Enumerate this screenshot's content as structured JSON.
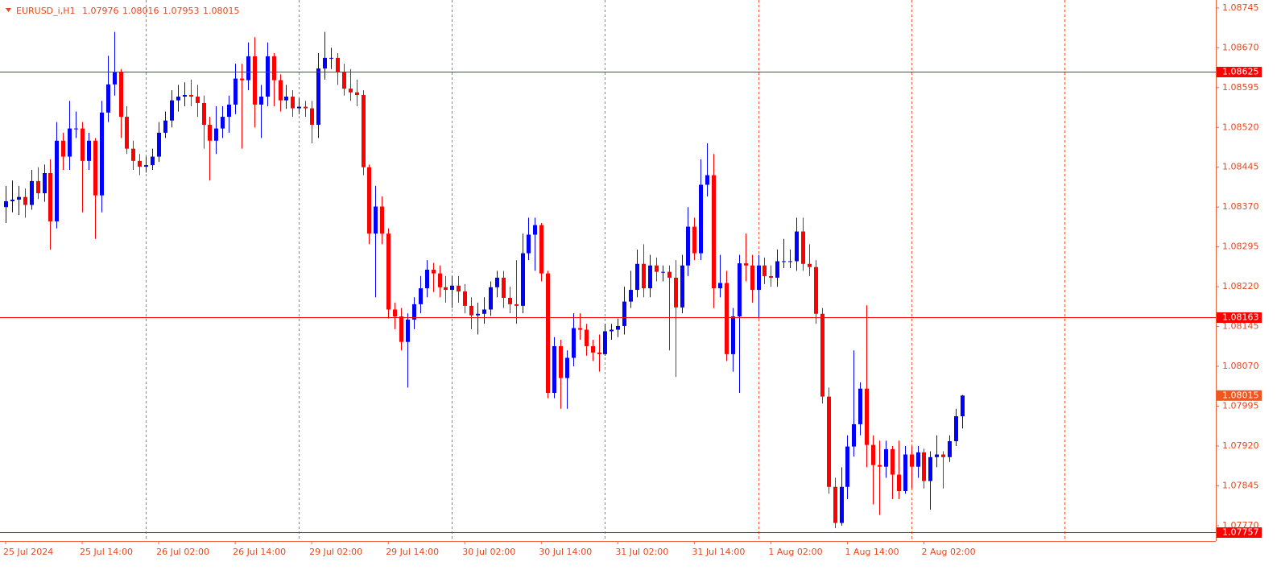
{
  "chart_data": {
    "type": "candlestick",
    "symbol": "EURUSD_i,H1",
    "up_color": "#0000ff",
    "down_color": "#ff0000",
    "level_color": "#ff0000",
    "ylim": [
      1.07741,
      1.0876
    ],
    "yticks": [
      1.08745,
      {
        "value": 1.0867,
        "label": "1.08670"
      },
      1.08595,
      {
        "value": 1.0852,
        "label": "1.08520"
      },
      1.08445,
      {
        "value": 1.0837,
        "label": "1.08370"
      },
      1.08295,
      {
        "value": 1.0822,
        "label": "1.08220"
      },
      1.08145,
      {
        "value": 1.0807,
        "label": "1.08070"
      },
      1.07995,
      {
        "value": 1.0792,
        "label": "1.07920"
      },
      1.07845,
      {
        "value": 1.0777,
        "label": "1.07770"
      }
    ],
    "levels": [
      1.08625,
      1.08163,
      1.07757
    ],
    "x": [
      "25 Jul 2024",
      null,
      null,
      null,
      null,
      null,
      null,
      null,
      null,
      null,
      null,
      null,
      "25 Jul 14:00",
      null,
      null,
      null,
      null,
      null,
      null,
      null,
      null,
      null,
      null,
      null,
      "26 Jul 02:00",
      null,
      null,
      null,
      null,
      null,
      null,
      null,
      null,
      null,
      null,
      null,
      "26 Jul 14:00",
      null,
      null,
      null,
      null,
      null,
      null,
      null,
      null,
      null,
      null,
      null,
      "29 Jul 02:00",
      null,
      null,
      null,
      null,
      null,
      null,
      null,
      null,
      null,
      null,
      null,
      "29 Jul 14:00",
      null,
      null,
      null,
      null,
      null,
      null,
      null,
      null,
      null,
      null,
      null,
      "30 Jul 02:00",
      null,
      null,
      null,
      null,
      null,
      null,
      null,
      null,
      null,
      null,
      null,
      "30 Jul 14:00",
      null,
      null,
      null,
      null,
      null,
      null,
      null,
      null,
      null,
      null,
      null,
      "31 Jul 02:00",
      null,
      null,
      null,
      null,
      null,
      null,
      null,
      null,
      null,
      null,
      null,
      "31 Jul 14:00",
      null,
      null,
      null,
      null,
      null,
      null,
      null,
      null,
      null,
      null,
      null,
      "1 Aug 02:00",
      null,
      null,
      null,
      null,
      null,
      null,
      null,
      null,
      null,
      null,
      null,
      "1 Aug 14:00",
      null,
      null,
      null,
      null,
      null,
      null,
      null,
      null,
      null,
      null,
      null,
      "2 Aug 02:00",
      null,
      null,
      null,
      null,
      null,
      null
    ],
    "candles": [
      [
        1.0837,
        1.0841,
        1.0834,
        1.08381
      ],
      [
        1.08381,
        1.0842,
        1.0836,
        1.08384
      ],
      [
        1.08384,
        1.0841,
        1.08355,
        1.08389
      ],
      [
        1.08389,
        1.08405,
        1.0835,
        1.08374
      ],
      [
        1.08374,
        1.0844,
        1.08365,
        1.08419
      ],
      [
        1.08419,
        1.08445,
        1.08385,
        1.08396
      ],
      [
        1.08396,
        1.0845,
        1.0838,
        1.08434
      ],
      [
        1.08434,
        1.0846,
        1.0829,
        1.08343
      ],
      [
        1.08343,
        1.0853,
        1.0833,
        1.08495
      ],
      [
        1.08495,
        1.0851,
        1.0844,
        1.08465
      ],
      [
        1.08465,
        1.0857,
        1.0844,
        1.08518
      ],
      [
        1.08518,
        1.0855,
        1.085,
        1.08518
      ],
      [
        1.08518,
        1.0853,
        1.0836,
        1.08457
      ],
      [
        1.08457,
        1.0851,
        1.0844,
        1.08495
      ],
      [
        1.08495,
        1.085,
        1.0831,
        1.08392
      ],
      [
        1.08392,
        1.0857,
        1.0836,
        1.08548
      ],
      [
        1.08548,
        1.08655,
        1.0853,
        1.08601
      ],
      [
        1.08601,
        1.087,
        1.0858,
        1.08624
      ],
      [
        1.08624,
        1.0863,
        1.085,
        1.0854
      ],
      [
        1.0854,
        1.0856,
        1.0847,
        1.0848
      ],
      [
        1.0848,
        1.08495,
        1.0844,
        1.08457
      ],
      [
        1.08457,
        1.0847,
        1.0843,
        1.08446
      ],
      [
        1.08446,
        1.08465,
        1.08435,
        1.08449
      ],
      [
        1.08449,
        1.0848,
        1.0844,
        1.08465
      ],
      [
        1.08465,
        1.0853,
        1.08455,
        1.0851
      ],
      [
        1.0851,
        1.0855,
        1.085,
        1.08533
      ],
      [
        1.08533,
        1.0859,
        1.0852,
        1.08571
      ],
      [
        1.08571,
        1.086,
        1.0855,
        1.08578
      ],
      [
        1.08578,
        1.08605,
        1.0856,
        1.08581
      ],
      [
        1.08581,
        1.0861,
        1.0856,
        1.08578
      ],
      [
        1.08578,
        1.086,
        1.0854,
        1.08566
      ],
      [
        1.08566,
        1.0858,
        1.0848,
        1.08525
      ],
      [
        1.08525,
        1.0854,
        1.0842,
        1.08495
      ],
      [
        1.08495,
        1.0856,
        1.0847,
        1.08518
      ],
      [
        1.08518,
        1.0856,
        1.085,
        1.0854
      ],
      [
        1.0854,
        1.0858,
        1.0851,
        1.08563
      ],
      [
        1.08563,
        1.0864,
        1.08545,
        1.08612
      ],
      [
        1.08612,
        1.0864,
        1.0848,
        1.08609
      ],
      [
        1.08609,
        1.0868,
        1.0859,
        1.08654
      ],
      [
        1.08654,
        1.0869,
        1.0852,
        1.08563
      ],
      [
        1.08563,
        1.086,
        1.085,
        1.08578
      ],
      [
        1.08578,
        1.0868,
        1.0856,
        1.08654
      ],
      [
        1.08654,
        1.0866,
        1.0856,
        1.08609
      ],
      [
        1.08609,
        1.0862,
        1.0855,
        1.08571
      ],
      [
        1.08571,
        1.086,
        1.08555,
        1.08578
      ],
      [
        1.08578,
        1.0859,
        1.0854,
        1.08556
      ],
      [
        1.08556,
        1.08575,
        1.08545,
        1.08559
      ],
      [
        1.08559,
        1.0857,
        1.0854,
        1.08556
      ],
      [
        1.08556,
        1.0857,
        1.0849,
        1.08525
      ],
      [
        1.08525,
        1.0866,
        1.085,
        1.08631
      ],
      [
        1.08631,
        1.087,
        1.0861,
        1.08651
      ],
      [
        1.08651,
        1.0867,
        1.0863,
        1.08651
      ],
      [
        1.08651,
        1.0866,
        1.086,
        1.08624
      ],
      [
        1.08624,
        1.0864,
        1.0858,
        1.08593
      ],
      [
        1.08593,
        1.0863,
        1.0857,
        1.08586
      ],
      [
        1.08586,
        1.0861,
        1.0856,
        1.08581
      ],
      [
        1.08581,
        1.0859,
        1.0843,
        1.08445
      ],
      [
        1.08445,
        1.0845,
        1.083,
        1.0832
      ],
      [
        1.0832,
        1.0841,
        1.082,
        1.08371
      ],
      [
        1.08371,
        1.0839,
        1.083,
        1.0832
      ],
      [
        1.0832,
        1.0833,
        1.0816,
        1.08177
      ],
      [
        1.08177,
        1.0819,
        1.0814,
        1.08164
      ],
      [
        1.08164,
        1.0818,
        1.081,
        1.08116
      ],
      [
        1.08116,
        1.0817,
        1.0803,
        1.08158
      ],
      [
        1.08158,
        1.082,
        1.0814,
        1.08187
      ],
      [
        1.08187,
        1.0824,
        1.0817,
        1.08217
      ],
      [
        1.08217,
        1.0827,
        1.082,
        1.08252
      ],
      [
        1.08252,
        1.08265,
        1.0821,
        1.08245
      ],
      [
        1.08245,
        1.0826,
        1.082,
        1.08219
      ],
      [
        1.08219,
        1.0824,
        1.0819,
        1.08214
      ],
      [
        1.08214,
        1.0824,
        1.0818,
        1.08222
      ],
      [
        1.08222,
        1.0824,
        1.0819,
        1.08211
      ],
      [
        1.08211,
        1.08225,
        1.0817,
        1.08184
      ],
      [
        1.08184,
        1.082,
        1.0814,
        1.08166
      ],
      [
        1.08166,
        1.0819,
        1.0813,
        1.08169
      ],
      [
        1.08169,
        1.082,
        1.0815,
        1.08177
      ],
      [
        1.08177,
        1.0823,
        1.08165,
        1.08219
      ],
      [
        1.08219,
        1.0825,
        1.082,
        1.08237
      ],
      [
        1.08237,
        1.0825,
        1.0818,
        1.08199
      ],
      [
        1.08199,
        1.0822,
        1.0817,
        1.08187
      ],
      [
        1.08187,
        1.0827,
        1.0815,
        1.08184
      ],
      [
        1.08184,
        1.0832,
        1.0817,
        1.08283
      ],
      [
        1.08283,
        1.0835,
        1.0827,
        1.08318
      ],
      [
        1.08318,
        1.0835,
        1.0825,
        1.08336
      ],
      [
        1.08336,
        1.0834,
        1.0823,
        1.08245
      ],
      [
        1.08245,
        1.0825,
        1.0801,
        1.0802
      ],
      [
        1.0802,
        1.08125,
        1.0801,
        1.08108
      ],
      [
        1.08108,
        1.0812,
        1.0799,
        1.08048
      ],
      [
        1.08048,
        1.081,
        1.0799,
        1.08086
      ],
      [
        1.08086,
        1.0817,
        1.0807,
        1.08142
      ],
      [
        1.08142,
        1.0817,
        1.0812,
        1.08139
      ],
      [
        1.08139,
        1.0815,
        1.0809,
        1.08108
      ],
      [
        1.08108,
        1.0812,
        1.0808,
        1.08096
      ],
      [
        1.08096,
        1.0813,
        1.0806,
        1.08093
      ],
      [
        1.08093,
        1.0815,
        1.0809,
        1.08136
      ],
      [
        1.08136,
        1.0815,
        1.0812,
        1.08139
      ],
      [
        1.08139,
        1.0816,
        1.08125,
        1.08146
      ],
      [
        1.08146,
        1.0822,
        1.0813,
        1.08192
      ],
      [
        1.08192,
        1.0825,
        1.0818,
        1.08214
      ],
      [
        1.08214,
        1.0829,
        1.082,
        1.08263
      ],
      [
        1.08263,
        1.083,
        1.082,
        1.08217
      ],
      [
        1.08217,
        1.0828,
        1.082,
        1.0826
      ],
      [
        1.0826,
        1.08275,
        1.0823,
        1.08248
      ],
      [
        1.08248,
        1.0826,
        1.0823,
        1.08248
      ],
      [
        1.08248,
        1.0826,
        1.081,
        1.08237
      ],
      [
        1.08237,
        1.0827,
        1.0805,
        1.08181
      ],
      [
        1.08181,
        1.0828,
        1.0817,
        1.0826
      ],
      [
        1.0826,
        1.0837,
        1.0824,
        1.08333
      ],
      [
        1.08333,
        1.0835,
        1.0827,
        1.08283
      ],
      [
        1.08283,
        1.0846,
        1.0827,
        1.08412
      ],
      [
        1.08412,
        1.0849,
        1.0839,
        1.0843
      ],
      [
        1.0843,
        1.0847,
        1.0818,
        1.08217
      ],
      [
        1.08217,
        1.0828,
        1.082,
        1.08227
      ],
      [
        1.08227,
        1.0825,
        1.0808,
        1.08093
      ],
      [
        1.08093,
        1.0818,
        1.0806,
        1.08164
      ],
      [
        1.08164,
        1.0828,
        1.0802,
        1.08264
      ],
      [
        1.08264,
        1.0832,
        1.0823,
        1.0826
      ],
      [
        1.0826,
        1.0828,
        1.0819,
        1.08214
      ],
      [
        1.08214,
        1.0828,
        1.0816,
        1.0826
      ],
      [
        1.0826,
        1.08275,
        1.08225,
        1.0824
      ],
      [
        1.0824,
        1.0826,
        1.0822,
        1.08237
      ],
      [
        1.08237,
        1.0829,
        1.0822,
        1.08268
      ],
      [
        1.08268,
        1.0831,
        1.08255,
        1.08268
      ],
      [
        1.08268,
        1.0829,
        1.08255,
        1.08268
      ],
      [
        1.08268,
        1.0835,
        1.0825,
        1.08324
      ],
      [
        1.08324,
        1.0835,
        1.0825,
        1.08263
      ],
      [
        1.08263,
        1.083,
        1.0824,
        1.08257
      ],
      [
        1.08257,
        1.0827,
        1.0815,
        1.08169
      ],
      [
        1.08169,
        1.0818,
        1.08,
        1.08013
      ],
      [
        1.08013,
        1.0803,
        1.0783,
        1.07843
      ],
      [
        1.07843,
        1.0786,
        1.07765,
        1.07775
      ],
      [
        1.07775,
        1.0788,
        1.0777,
        1.07843
      ],
      [
        1.07843,
        1.0794,
        1.0782,
        1.07919
      ],
      [
        1.07919,
        1.081,
        1.079,
        1.07961
      ],
      [
        1.07961,
        1.0804,
        1.0794,
        1.08028
      ],
      [
        1.08028,
        1.08185,
        1.0788,
        1.07922
      ],
      [
        1.07922,
        1.0794,
        1.0781,
        1.07884
      ],
      [
        1.07884,
        1.0793,
        1.0779,
        1.07881
      ],
      [
        1.07881,
        1.0793,
        1.0786,
        1.07914
      ],
      [
        1.07914,
        1.0792,
        1.0782,
        1.07866
      ],
      [
        1.07866,
        1.0793,
        1.0782,
        1.07835
      ],
      [
        1.07835,
        1.0792,
        1.0783,
        1.07904
      ],
      [
        1.07904,
        1.0792,
        1.0784,
        1.07881
      ],
      [
        1.07881,
        1.0792,
        1.0786,
        1.07908
      ],
      [
        1.07908,
        1.07915,
        1.0784,
        1.07854
      ],
      [
        1.07854,
        1.0791,
        1.078,
        1.07899
      ],
      [
        1.07899,
        1.0794,
        1.0788,
        1.07904
      ],
      [
        1.07904,
        1.0791,
        1.0784,
        1.07899
      ],
      [
        1.07899,
        1.0794,
        1.0789,
        1.07929
      ],
      [
        1.07929,
        1.0799,
        1.0792,
        1.07976
      ],
      [
        1.07976,
        1.08016,
        1.07953,
        1.08015
      ]
    ]
  }
}
